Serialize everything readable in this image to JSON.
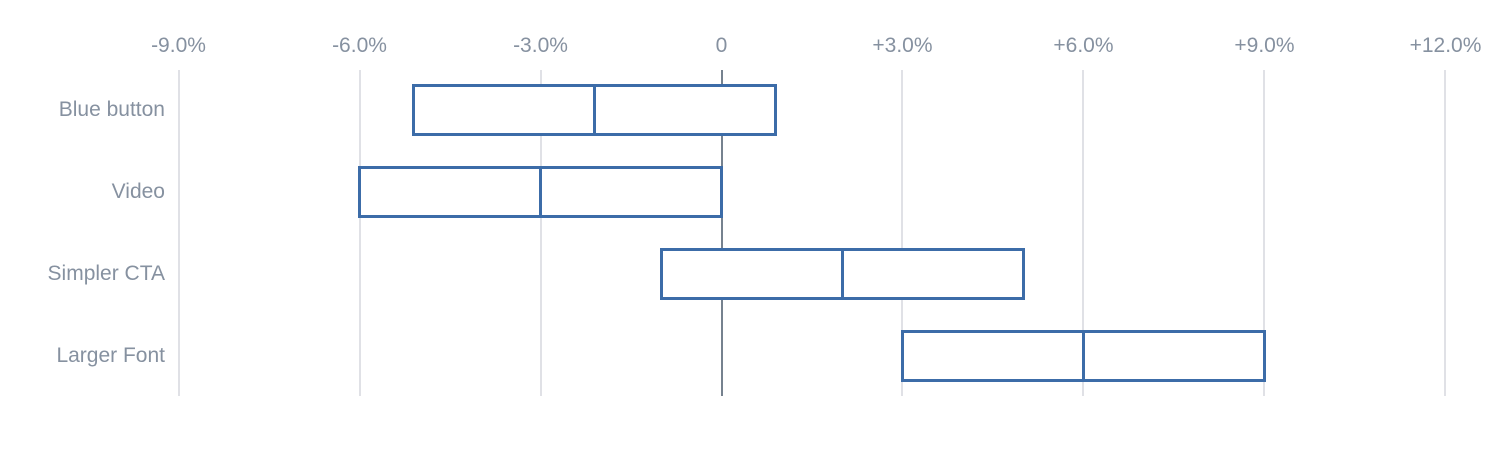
{
  "chart_data": {
    "type": "bar",
    "subtype": "horizontal-range-interval",
    "title": "",
    "unit": "percent",
    "categories": [
      "Blue button",
      "Video",
      "Simpler CTA",
      "Larger Font"
    ],
    "series": [
      {
        "name": "low",
        "values": [
          -5.1,
          -6.0,
          -1.0,
          3.0
        ]
      },
      {
        "name": "mid",
        "values": [
          -2.1,
          -3.0,
          2.0,
          6.0
        ]
      },
      {
        "name": "high",
        "values": [
          0.9,
          0.0,
          5.0,
          9.0
        ]
      }
    ],
    "x_ticks": [
      {
        "value": -9,
        "label": "-9.0%"
      },
      {
        "value": -6,
        "label": "-6.0%"
      },
      {
        "value": -3,
        "label": "-3.0%"
      },
      {
        "value": 0,
        "label": "0"
      },
      {
        "value": 3,
        "label": "+3.0%"
      },
      {
        "value": 6,
        "label": "+6.0%"
      },
      {
        "value": 9,
        "label": "+9.0%"
      },
      {
        "value": 12,
        "label": "+12.0%"
      }
    ],
    "xlim": [
      -11.9,
      13.1
    ],
    "grid": "vertical-at-ticks",
    "legend": "none",
    "colors": {
      "bar_border": "#3C6CA8",
      "bar_fill": "#FFFFFF",
      "gridline": "#E0E1E6",
      "zero_line": "#76828F",
      "text": "#8691A0",
      "background": "#FFFFFF"
    }
  }
}
